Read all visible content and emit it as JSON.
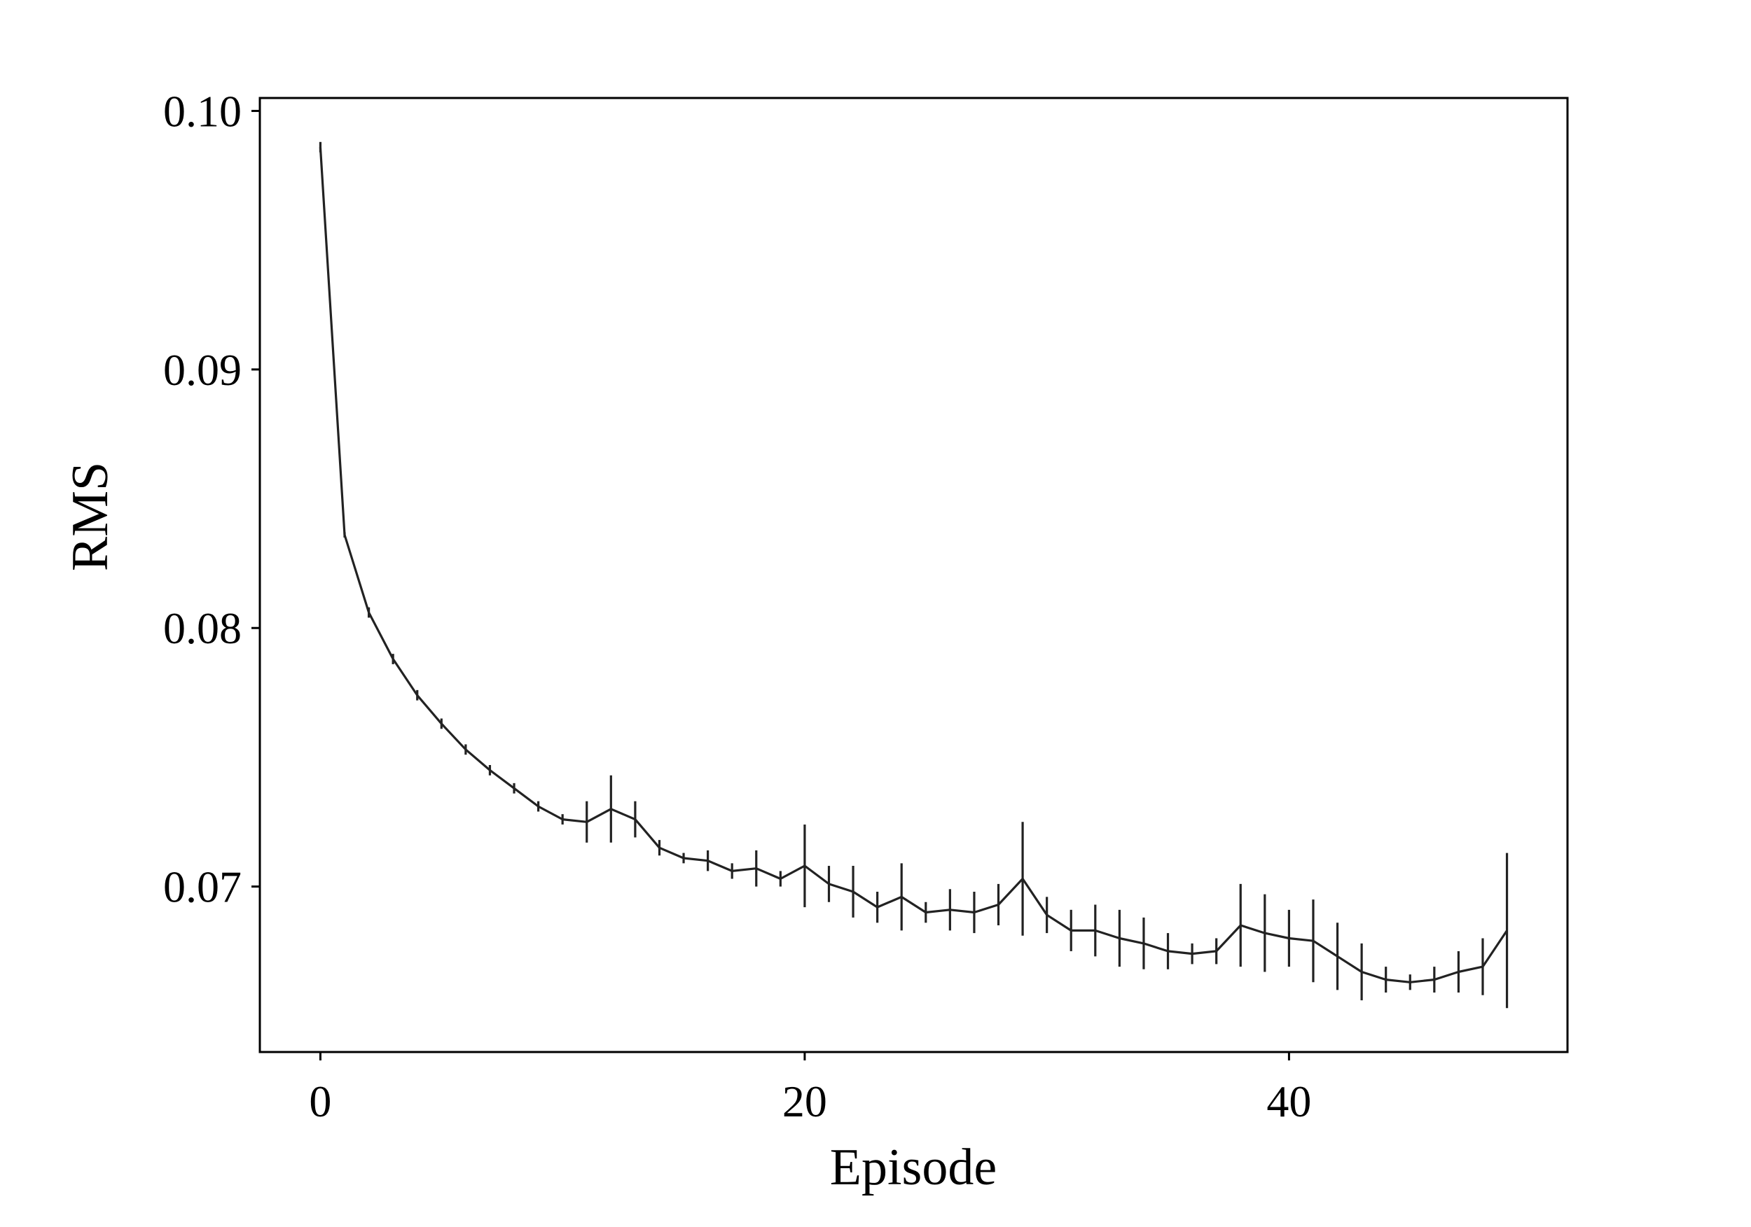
{
  "chart_data": {
    "type": "line",
    "title": "",
    "xlabel": "Episode",
    "ylabel": "RMS",
    "xlim": [
      -2.5,
      51.5
    ],
    "ylim": [
      0.0636,
      0.1005
    ],
    "xticks": [
      0,
      20,
      40
    ],
    "xtick_labels": [
      "0",
      "20",
      "40"
    ],
    "yticks": [
      0.07,
      0.08,
      0.09,
      0.1
    ],
    "ytick_labels": [
      "0.07",
      "0.08",
      "0.09",
      "0.10"
    ],
    "grid": false,
    "legend": "none",
    "line_color": "#222222",
    "series": [
      {
        "x": [
          0,
          1,
          2,
          3,
          4,
          5,
          6,
          7,
          8,
          9,
          10,
          11,
          12,
          13,
          14,
          15,
          16,
          17,
          18,
          19,
          20,
          21,
          22,
          23,
          24,
          25,
          26,
          27,
          28,
          29,
          30,
          31,
          32,
          33,
          34,
          35,
          36,
          37,
          38,
          39,
          40,
          41,
          42,
          43,
          44,
          45,
          46,
          47,
          48,
          49
        ],
        "y": [
          0.0986,
          0.0836,
          0.0806,
          0.0788,
          0.0774,
          0.0763,
          0.0753,
          0.0745,
          0.0738,
          0.0731,
          0.0726,
          0.0725,
          0.073,
          0.0726,
          0.0715,
          0.0711,
          0.071,
          0.0706,
          0.0707,
          0.0703,
          0.0708,
          0.0701,
          0.0698,
          0.0692,
          0.0696,
          0.069,
          0.0691,
          0.069,
          0.0693,
          0.0703,
          0.0689,
          0.0683,
          0.0683,
          0.068,
          0.0678,
          0.0675,
          0.0674,
          0.0675,
          0.0685,
          0.0682,
          0.068,
          0.0679,
          0.0673,
          0.0667,
          0.0664,
          0.0663,
          0.0664,
          0.0667,
          0.0669,
          0.0683
        ],
        "error": [
          0.0002,
          0.0001,
          0.0002,
          0.0002,
          0.0002,
          0.0002,
          0.0002,
          0.0002,
          0.0002,
          0.0002,
          0.0002,
          0.0008,
          0.0013,
          0.0007,
          0.0003,
          0.0002,
          0.0004,
          0.0003,
          0.0007,
          0.0003,
          0.0016,
          0.0007,
          0.001,
          0.0006,
          0.0013,
          0.0004,
          0.0008,
          0.0008,
          0.0008,
          0.0022,
          0.0007,
          0.0008,
          0.001,
          0.0011,
          0.001,
          0.0007,
          0.0004,
          0.0005,
          0.0016,
          0.0015,
          0.0011,
          0.0016,
          0.0013,
          0.0011,
          0.0005,
          0.0003,
          0.0005,
          0.0008,
          0.0011,
          0.003
        ]
      }
    ]
  }
}
